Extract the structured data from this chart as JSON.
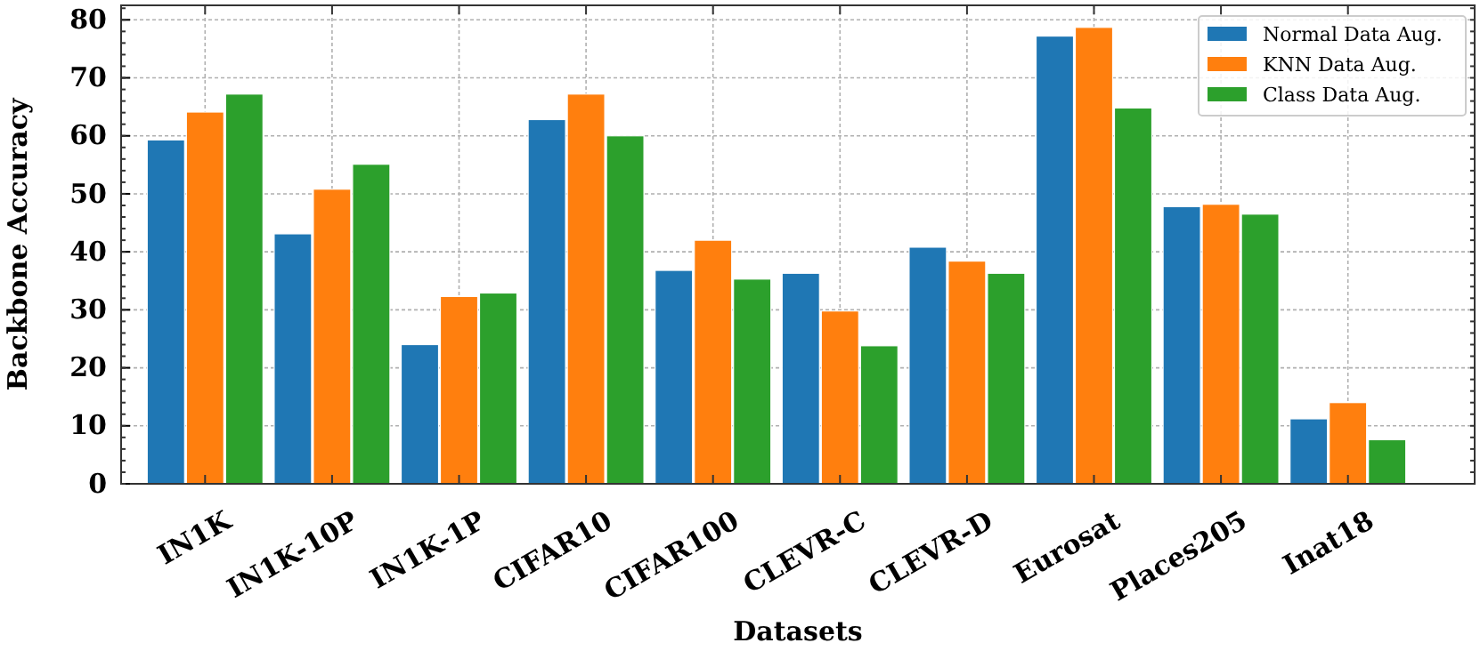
{
  "chart_data": {
    "type": "bar",
    "xlabel": "Datasets",
    "ylabel": "Backbone Accuracy",
    "categories": [
      "IN1K",
      "IN1K-10P",
      "IN1K-1P",
      "CIFAR10",
      "CIFAR100",
      "CLEVR-C",
      "CLEVR-D",
      "Eurosat",
      "Places205",
      "Inat18"
    ],
    "series": [
      {
        "name": "Normal Data Aug.",
        "color": "#1f77b4",
        "values": [
          59.3,
          43.1,
          24.0,
          62.8,
          36.8,
          36.3,
          40.8,
          77.2,
          47.8,
          11.2
        ]
      },
      {
        "name": "KNN Data Aug.",
        "color": "#ff7f0e",
        "values": [
          64.1,
          50.8,
          32.3,
          67.2,
          42.0,
          29.8,
          38.4,
          78.7,
          48.2,
          14.0
        ]
      },
      {
        "name": "Class Data Aug.",
        "color": "#2ca02c",
        "values": [
          67.2,
          55.1,
          32.9,
          60.0,
          35.3,
          23.8,
          36.3,
          64.8,
          46.5,
          7.6
        ]
      }
    ],
    "ylim": [
      0,
      82.5
    ],
    "yticks": [
      0,
      10,
      20,
      30,
      40,
      50,
      60,
      70,
      80
    ],
    "grid": true,
    "legend": "top right"
  }
}
